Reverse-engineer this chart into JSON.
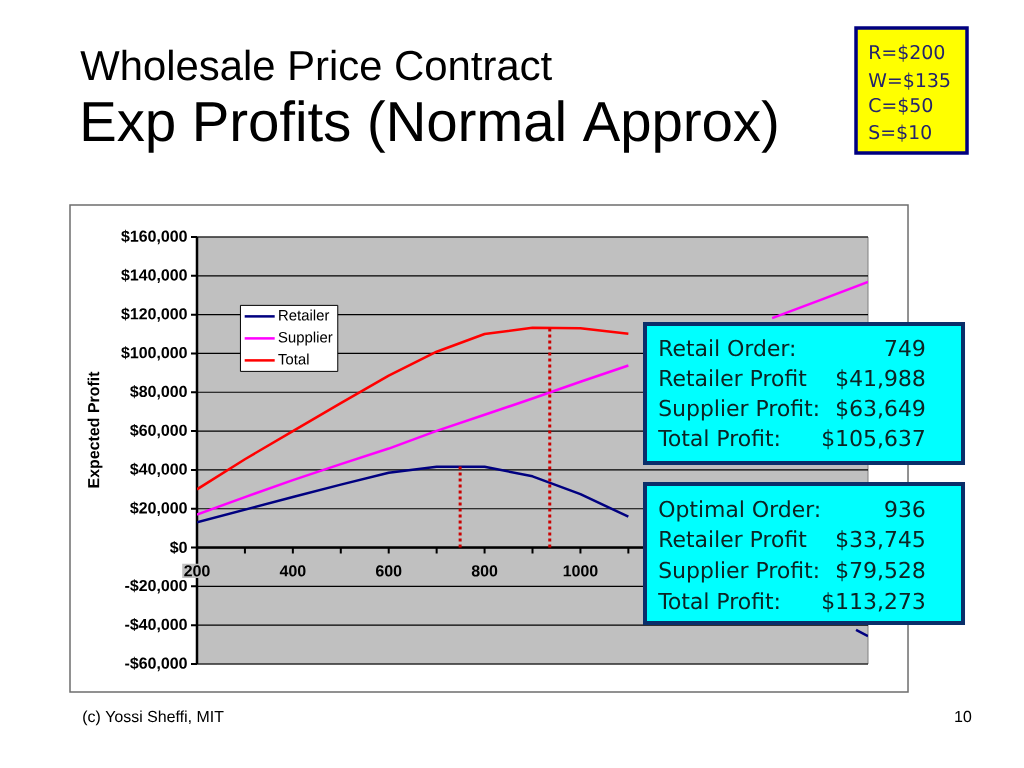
{
  "chart_data": {
    "type": "line",
    "title": "Wholesale Price Contract",
    "subtitle": "Exp Profits (Normal Approx)",
    "ylabel": "Expected Profit",
    "x": [
      200,
      300,
      400,
      500,
      600,
      700,
      800,
      900,
      1000,
      1100,
      1200,
      1300,
      1400,
      1500,
      1600
    ],
    "series": [
      {
        "name": "Retailer",
        "color": "#000080",
        "x": [
          200,
          300,
          400,
          500,
          600,
          700,
          800,
          900,
          1000,
          1100,
          1300,
          1575,
          1600
        ],
        "values": [
          13000,
          19500,
          26000,
          32400,
          38500,
          41600,
          41600,
          36700,
          27500,
          15900,
          null,
          -42400,
          -45600
        ]
      },
      {
        "name": "Supplier",
        "color": "#ff00ff",
        "values": [
          17000,
          26000,
          34700,
          43000,
          51000,
          60100,
          68400,
          76800,
          85400,
          93800,
          null,
          null,
          118200,
          127500,
          136900
        ]
      },
      {
        "name": "Total",
        "color": "#ff0000",
        "values": [
          30000,
          45500,
          60000,
          74400,
          88600,
          100900,
          110000,
          113300,
          113000,
          110200,
          null,
          null,
          null,
          null,
          null
        ]
      },
      {
        "color": "#cc0000",
        "x": [
          749,
          749
        ],
        "values": [
          0,
          41988
        ],
        "line_style": "dotted"
      },
      {
        "color": "#cc0000",
        "x": [
          936,
          936
        ],
        "values": [
          0,
          113273
        ],
        "line_style": "dotted"
      }
    ],
    "xlim": [
      200,
      1600
    ],
    "ylim": [
      -60000,
      160000
    ],
    "xticks": [
      200,
      {
        "value": 300,
        "label": null
      },
      400,
      {
        "value": 500,
        "label": null
      },
      600,
      {
        "value": 700,
        "label": null
      },
      800,
      {
        "value": 900,
        "label": null
      },
      1000,
      {
        "value": 1100,
        "label": null
      }
    ],
    "yticks": [
      {
        "value": -60000,
        "label": "-$60,000"
      },
      {
        "value": -40000,
        "label": "-$40,000"
      },
      {
        "value": -20000,
        "label": "-$20,000"
      },
      {
        "value": 0,
        "label": "$0"
      },
      {
        "value": 20000,
        "label": "$20,000"
      },
      {
        "value": 40000,
        "label": "$40,000"
      },
      {
        "value": 60000,
        "label": "$60,000"
      },
      {
        "value": 80000,
        "label": "$80,000"
      },
      {
        "value": 100000,
        "label": "$100,000"
      },
      {
        "value": 120000,
        "label": "$120,000"
      },
      {
        "value": 140000,
        "label": "$140,000"
      },
      {
        "value": 160000,
        "label": "$160,000"
      }
    ],
    "grid": "y",
    "legend": "top left",
    "annotations": [
      "R=$200",
      "W=$135",
      "C=$50",
      "S=$10",
      "Retail Order:",
      "749",
      "Retailer Profit",
      "$41,988",
      "Supplier Profit:",
      "$63,649",
      "Total Profit:",
      "$105,637",
      "Optimal Order:",
      "936",
      "Retailer Profit",
      "$33,745",
      "Supplier Profit:",
      "$79,528",
      "Total Profit:",
      "$113,273",
      "(c) Yossi Sheffi, MIT",
      "10"
    ]
  }
}
